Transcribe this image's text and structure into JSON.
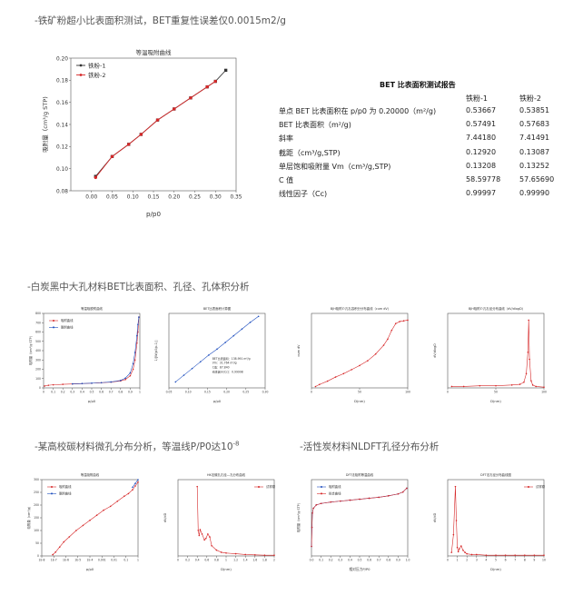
{
  "sections": {
    "s1": "-铁矿粉超小比表面积测试，BET重复性误差仅0.0015m2/g",
    "s2": "-白炭黑中大孔材料BET比表面积、孔径、孔体积分析",
    "s3": "-某高校碳材料微孔分布分析，等温线P/P0达10",
    "s3_sup": "-8",
    "s4": "-活性炭材料NLDFT孔径分布分析"
  },
  "report": {
    "title": "BET 比表面积测试报告",
    "col1": "铁粉-1",
    "col2": "铁粉-2",
    "rows": [
      {
        "label": "单点 BET 比表面积在 p/p0 为 0.20000（m²/g)",
        "v1": "0.53667",
        "v2": "0.53851"
      },
      {
        "label": "BET 比表面积（m²/g)",
        "v1": "0.57491",
        "v2": "0.57683"
      },
      {
        "label": "斜率",
        "v1": "7.44180",
        "v2": "7.41491"
      },
      {
        "label": "截距（cm³/g,STP)",
        "v1": "0.12920",
        "v2": "0.13087"
      },
      {
        "label": "单层饱和吸附量 Vm（cm³/g,STP)",
        "v1": "0.13208",
        "v2": "0.13252"
      },
      {
        "label": "C 值",
        "v1": "58.59778",
        "v2": "57.65690"
      },
      {
        "label": "线性因子（Cc)",
        "v1": "0.99997",
        "v2": "0.99990"
      }
    ]
  },
  "colors": {
    "red": "#d62728",
    "dark": "#333333",
    "blue": "#1f4fbf"
  },
  "chart_data": [
    {
      "id": "c1",
      "type": "line",
      "title": "等温吸附曲线",
      "xlabel": "p/p0",
      "ylabel": "吸附量（cm³/g STP)",
      "xlim": [
        -0.05,
        0.35
      ],
      "ylim": [
        0.08,
        0.2
      ],
      "xticks": [
        "0.00",
        "0.05",
        "0.10",
        "0.15",
        "0.20",
        "0.25",
        "0.30",
        "0.35"
      ],
      "xtick_values": [
        0,
        0.05,
        0.1,
        0.15,
        0.2,
        0.25,
        0.3,
        0.35
      ],
      "yticks": [
        "0.08",
        "0.10",
        "0.12",
        "0.14",
        "0.16",
        "0.18",
        "0.20"
      ],
      "ytick_values": [
        0.08,
        0.1,
        0.12,
        0.14,
        0.16,
        0.18,
        0.2
      ],
      "legend": "top-left",
      "series": [
        {
          "name": "铁粉-1",
          "color": "#333333",
          "x": [
            0.01,
            0.05,
            0.09,
            0.12,
            0.16,
            0.2,
            0.24,
            0.28,
            0.3,
            0.325
          ],
          "y": [
            0.093,
            0.111,
            0.122,
            0.131,
            0.144,
            0.154,
            0.164,
            0.174,
            0.179,
            0.189
          ]
        },
        {
          "name": "铁粉-2",
          "color": "#d62728",
          "x": [
            0.01,
            0.05,
            0.09,
            0.12,
            0.16,
            0.2,
            0.24,
            0.28,
            0.3
          ],
          "y": [
            0.092,
            0.111,
            0.122,
            0.131,
            0.144,
            0.154,
            0.164,
            0.174,
            0.179
          ]
        }
      ]
    },
    {
      "id": "c2",
      "type": "line",
      "title": "等温吸脱附曲线",
      "xlabel": "p/p0",
      "ylabel": "吸附量（cm³/g STP)",
      "xlim": [
        0,
        1
      ],
      "ylim": [
        0,
        800
      ],
      "xticks": [
        "0",
        "0.1",
        "0.2",
        "0.3",
        "0.4",
        "0.5",
        "0.6",
        "0.7",
        "0.8",
        "0.9",
        "1"
      ],
      "yticks": [
        "0",
        "100",
        "200",
        "300",
        "400",
        "500",
        "600",
        "700",
        "800"
      ],
      "legend": "top-left",
      "series": [
        {
          "name": "吸附曲线",
          "color": "#d62728",
          "x": [
            0.01,
            0.05,
            0.1,
            0.2,
            0.3,
            0.4,
            0.5,
            0.6,
            0.7,
            0.8,
            0.85,
            0.9,
            0.93,
            0.95,
            0.97,
            0.98,
            0.99
          ],
          "y": [
            20,
            28,
            33,
            38,
            42,
            46,
            50,
            55,
            62,
            75,
            90,
            130,
            200,
            300,
            480,
            600,
            760
          ]
        },
        {
          "name": "脱附曲线",
          "color": "#1f4fbf",
          "x": [
            0.99,
            0.98,
            0.97,
            0.95,
            0.93,
            0.9,
            0.85,
            0.8,
            0.7,
            0.6,
            0.5,
            0.4,
            0.3
          ],
          "y": [
            760,
            680,
            560,
            380,
            260,
            160,
            105,
            80,
            64,
            56,
            51,
            47,
            43
          ]
        }
      ]
    },
    {
      "id": "c3",
      "type": "scatter",
      "title": "BET比表面积计算图",
      "xlabel": "p/p0",
      "ylabel": "1/[W(p0/p-1)]",
      "xlim": [
        0.03,
        0.32
      ],
      "ylim": [
        0,
        1
      ],
      "xticks": [
        "0.05",
        "0.10",
        "0.15",
        "0.20",
        "0.25",
        "0.30"
      ],
      "annotation": [
        "BET比表面积：138.991 m²/g",
        "Vm：31.764 m³/g",
        "C值：87.840",
        "线性因子(Cc)：0.99998"
      ],
      "series": [
        {
          "name": "",
          "color": "#1f4fbf",
          "x": [
            0.05,
            0.075,
            0.1,
            0.125,
            0.15,
            0.175,
            0.2,
            0.225,
            0.25,
            0.275,
            0.3
          ],
          "y": [
            0.08,
            0.17,
            0.26,
            0.35,
            0.44,
            0.52,
            0.61,
            0.7,
            0.79,
            0.88,
            0.96
          ]
        }
      ]
    },
    {
      "id": "c4",
      "type": "line",
      "title": "BJH吸附介孔孔容积分分布曲线（cum dV)",
      "xlabel": "D(nm)",
      "ylabel": "cum dV",
      "xlim": [
        0,
        120
      ],
      "xticks": [
        "0",
        "50",
        "100"
      ],
      "series": [
        {
          "name": "",
          "color": "#d62728",
          "x": [
            5,
            10,
            20,
            30,
            40,
            50,
            60,
            70,
            80,
            90,
            95,
            100,
            105,
            110,
            115,
            120
          ],
          "y": [
            0.02,
            0.05,
            0.1,
            0.16,
            0.21,
            0.27,
            0.33,
            0.4,
            0.5,
            0.63,
            0.72,
            0.85,
            0.95,
            0.98,
            0.99,
            1.0
          ]
        }
      ]
    },
    {
      "id": "c5",
      "type": "line",
      "title": "BJH吸附介孔孔径分布曲线（dV/dlogD)",
      "xlabel": "D(nm)",
      "ylabel": "dV/dlogD",
      "xlim": [
        0,
        120
      ],
      "xticks": [
        "0",
        "50",
        "100"
      ],
      "series": [
        {
          "name": "",
          "color": "#d62728",
          "x": [
            5,
            20,
            40,
            60,
            80,
            90,
            95,
            98,
            100,
            101,
            102,
            104,
            106,
            110,
            120
          ],
          "y": [
            0.02,
            0.02,
            0.03,
            0.03,
            0.04,
            0.05,
            0.08,
            0.2,
            0.5,
            0.95,
            0.4,
            0.1,
            0.04,
            0.02,
            0.01
          ]
        }
      ]
    },
    {
      "id": "c6",
      "type": "line",
      "title": "等温吸附曲线",
      "xlabel": "p/p0",
      "ylabel": "吸附量（cm³/g)",
      "xlim": [
        0,
        7
      ],
      "ylim": [
        0,
        300
      ],
      "xticks": [
        "1E-8",
        "1E-7",
        "1E-6",
        "1E-5",
        "1E-4",
        "0.001",
        "0.01",
        "0.1",
        "1"
      ],
      "yticks": [
        "0",
        "50",
        "100",
        "150",
        "200",
        "250",
        "300"
      ],
      "legend": "top-left",
      "series": [
        {
          "name": "吸附曲线",
          "color": "#d62728",
          "x": [
            0.8,
            1,
            1.3,
            1.6,
            2,
            2.5,
            3,
            3.5,
            4,
            4.5,
            5,
            5.5,
            6,
            6.3,
            6.6,
            6.8,
            7
          ],
          "y": [
            5,
            15,
            35,
            55,
            75,
            100,
            120,
            140,
            160,
            180,
            195,
            215,
            235,
            245,
            260,
            275,
            290
          ]
        },
        {
          "name": "脱附曲线",
          "color": "#1f4fbf",
          "x": [
            7,
            6.8,
            6.6
          ],
          "y": [
            300,
            285,
            270
          ]
        }
      ]
    },
    {
      "id": "c7",
      "type": "line",
      "title": "HK法微孔孔径—孔分布曲线",
      "xlabel": "D(nm)",
      "ylabel": "dV/dD",
      "xlim": [
        0,
        2
      ],
      "xticks": [
        "0",
        "0.2",
        "0.4",
        "0.6",
        "0.8",
        "1",
        "1.2",
        "1.4",
        "1.6",
        "1.8",
        "2"
      ],
      "legend": "top-right",
      "series": [
        {
          "name": "试样原",
          "color": "#d62728",
          "x": [
            0.4,
            0.42,
            0.44,
            0.46,
            0.5,
            0.55,
            0.58,
            0.62,
            0.66,
            0.7,
            0.8,
            0.9,
            1.0,
            1.2,
            1.4,
            1.6,
            1.8,
            2.0
          ],
          "y": [
            0.95,
            0.35,
            0.28,
            0.36,
            0.3,
            0.22,
            0.24,
            0.3,
            0.26,
            0.14,
            0.08,
            0.05,
            0.04,
            0.03,
            0.02,
            0.015,
            0.01,
            0.01
          ]
        }
      ]
    },
    {
      "id": "c8",
      "type": "line",
      "title": "DFT法吸附等温曲线",
      "xlabel": "相对压力P/P0",
      "ylabel": "吸附量（cm³/g STP)",
      "xlim": [
        0,
        1
      ],
      "ylim": [
        0,
        1.6
      ],
      "xticks": [
        "0.0",
        "0.1",
        "0.2",
        "0.3",
        "0.4",
        "0.5",
        "0.6",
        "0.7",
        "0.8",
        "0.9",
        "1.0"
      ],
      "legend": "top-left",
      "series": [
        {
          "name": "吸附曲线",
          "color": "#1f4fbf",
          "x": [
            0.0005,
            0.005,
            0.01,
            0.02,
            0.05,
            0.1,
            0.2,
            0.3,
            0.4,
            0.5,
            0.6,
            0.7,
            0.8,
            0.9,
            0.95,
            0.99
          ],
          "y": [
            0.2,
            0.6,
            0.9,
            1.0,
            1.07,
            1.1,
            1.13,
            1.15,
            1.17,
            1.19,
            1.21,
            1.23,
            1.26,
            1.3,
            1.34,
            1.42
          ]
        },
        {
          "name": "拟合曲线",
          "color": "#d62728",
          "x": [
            0.0005,
            0.005,
            0.01,
            0.02,
            0.05,
            0.1,
            0.2,
            0.3,
            0.4,
            0.5,
            0.6,
            0.7,
            0.8,
            0.9,
            0.95,
            0.99
          ],
          "y": [
            0.2,
            0.6,
            0.9,
            1.0,
            1.07,
            1.1,
            1.13,
            1.15,
            1.17,
            1.19,
            1.21,
            1.23,
            1.26,
            1.3,
            1.34,
            1.42
          ]
        }
      ]
    },
    {
      "id": "c9",
      "type": "line",
      "title": "DFT法孔径分布曲线图",
      "xlabel": "D(nm)",
      "ylabel": "dV/dD",
      "xlim": [
        0,
        10
      ],
      "xticks": [
        "0",
        "1",
        "2",
        "3",
        "4",
        "5",
        "6",
        "7",
        "8",
        "9",
        "10"
      ],
      "legend": "top-right",
      "series": [
        {
          "name": "试样原",
          "color": "#d62728",
          "x": [
            0.4,
            0.6,
            0.8,
            0.9,
            1.0,
            1.1,
            1.2,
            1.4,
            1.6,
            1.8,
            2.0,
            2.5,
            3,
            4,
            5,
            6,
            7,
            8,
            9,
            10
          ],
          "y": [
            0.05,
            0.3,
            0.98,
            0.5,
            0.12,
            0.06,
            0.1,
            0.14,
            0.08,
            0.05,
            0.03,
            0.02,
            0.02,
            0.01,
            0.01,
            0.01,
            0.01,
            0.01,
            0.01,
            0.01
          ]
        }
      ]
    }
  ]
}
